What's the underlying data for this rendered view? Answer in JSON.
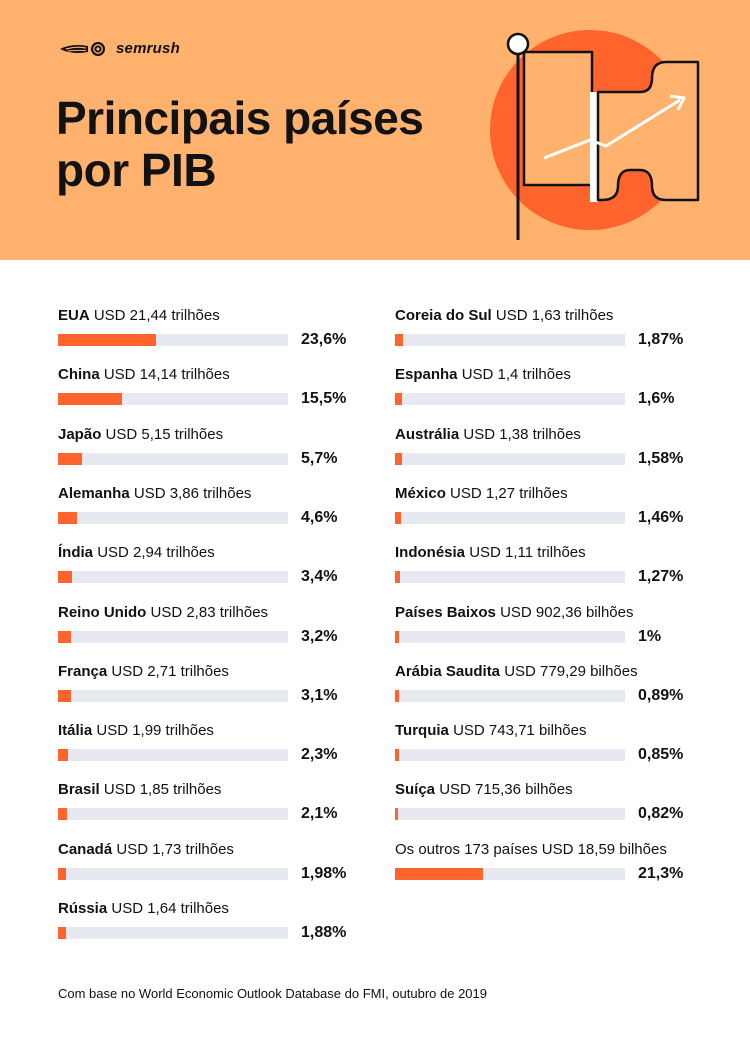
{
  "brand": {
    "name": "semrush"
  },
  "header": {
    "title": "Principais países\npor PIB"
  },
  "colors": {
    "header_bg": "#ffb26e",
    "accent": "#ff642d",
    "track": "#e6e9ef",
    "text": "#121212"
  },
  "chart_data": {
    "type": "bar",
    "orientation": "horizontal",
    "title": "Principais países por PIB",
    "value_unit": "%",
    "xlim": [
      0,
      100
    ],
    "columns": [
      [
        {
          "country": "EUA",
          "gdp": "USD 21,44 trilhões",
          "value": 23.6,
          "pct_label": "23,6%"
        },
        {
          "country": "China",
          "gdp": "USD 14,14 trilhões",
          "value": 15.5,
          "pct_label": "15,5%"
        },
        {
          "country": "Japão",
          "gdp": "USD 5,15 trilhões",
          "value": 5.7,
          "pct_label": "5,7%"
        },
        {
          "country": "Alemanha",
          "gdp": "USD 3,86 trilhões",
          "value": 4.6,
          "pct_label": "4,6%"
        },
        {
          "country": "Índia",
          "gdp": "USD 2,94 trilhões",
          "value": 3.4,
          "pct_label": "3,4%"
        },
        {
          "country": "Reino Unido",
          "gdp": "USD 2,83 trilhões",
          "value": 3.2,
          "pct_label": "3,2%"
        },
        {
          "country": "França",
          "gdp": "USD 2,71 trilhões",
          "value": 3.1,
          "pct_label": "3,1%"
        },
        {
          "country": "Itália",
          "gdp": "USD 1,99 trilhões",
          "value": 2.3,
          "pct_label": "2,3%"
        },
        {
          "country": "Brasil",
          "gdp": "USD 1,85 trilhões",
          "value": 2.1,
          "pct_label": "2,1%"
        },
        {
          "country": "Canadá",
          "gdp": "USD 1,73 trilhões",
          "value": 1.98,
          "pct_label": "1,98%"
        },
        {
          "country": "Rússia",
          "gdp": "USD 1,64 trilhões",
          "value": 1.88,
          "pct_label": "1,88%"
        }
      ],
      [
        {
          "country": "Coreia do Sul",
          "gdp": "USD 1,63 trilhões",
          "value": 1.87,
          "pct_label": "1,87%"
        },
        {
          "country": "Espanha",
          "gdp": "USD 1,4 trilhões",
          "value": 1.6,
          "pct_label": "1,6%"
        },
        {
          "country": "Austrália",
          "gdp": "USD 1,38 trilhões",
          "value": 1.58,
          "pct_label": "1,58%"
        },
        {
          "country": "México",
          "gdp": "USD 1,27 trilhões",
          "value": 1.46,
          "pct_label": "1,46%"
        },
        {
          "country": "Indonésia",
          "gdp": "USD 1,11 trilhões",
          "value": 1.27,
          "pct_label": "1,27%"
        },
        {
          "country": "Países Baixos",
          "gdp": "USD 902,36 bilhões",
          "value": 1.0,
          "pct_label": "1%"
        },
        {
          "country": "Arábia Saudita",
          "gdp": "USD 779,29 bilhões",
          "value": 0.89,
          "pct_label": "0,89%"
        },
        {
          "country": "Turquia",
          "gdp": "USD 743,71 bilhões",
          "value": 0.85,
          "pct_label": "0,85%"
        },
        {
          "country": "Suíça",
          "gdp": "USD 715,36 bilhões",
          "value": 0.82,
          "pct_label": "0,82%"
        },
        {
          "country": "",
          "gdp": "Os outros 173 países USD 18,59 bilhões",
          "value": 21.3,
          "pct_label": "21,3%"
        }
      ]
    ]
  },
  "footnote": "Com base no World Economic Outlook Database do FMI, outubro de 2019"
}
